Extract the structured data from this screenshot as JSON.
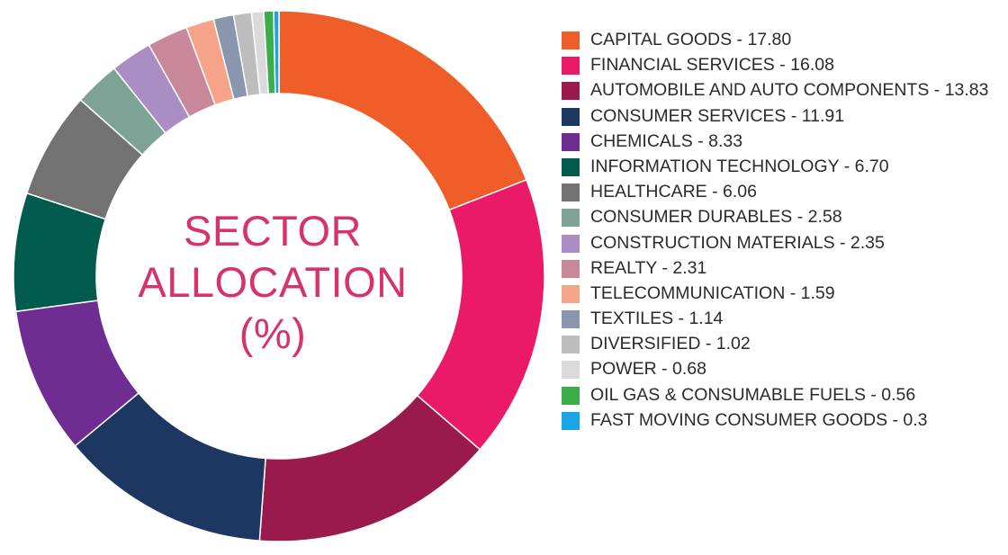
{
  "chart_data": {
    "type": "pie",
    "center_title": [
      "SECTOR",
      "ALLOCATION",
      "(%)"
    ],
    "legend_placement": "right",
    "series": [
      {
        "label": "CAPITAL GOODS - 17.80",
        "value": 17.8,
        "color": "#ef5e29"
      },
      {
        "label": "FINANCIAL SERVICES - 16.08",
        "value": 16.08,
        "color": "#eb1a68"
      },
      {
        "label": "AUTOMOBILE AND AUTO COMPONENTS - 13.83",
        "value": 13.83,
        "color": "#9b1a4e"
      },
      {
        "label": "CONSUMER SERVICES - 11.91",
        "value": 11.91,
        "color": "#1c3761"
      },
      {
        "label": "CHEMICALS - 8.33",
        "value": 8.33,
        "color": "#6f2c91"
      },
      {
        "label": "INFORMATION TECHNOLOGY - 6.70",
        "value": 6.7,
        "color": "#015b4e"
      },
      {
        "label": "HEALTHCARE - 6.06",
        "value": 6.06,
        "color": "#727272"
      },
      {
        "label": "CONSUMER DURABLES - 2.58",
        "value": 2.58,
        "color": "#7da296"
      },
      {
        "label": "CONSTRUCTION MATERIALS - 2.35",
        "value": 2.35,
        "color": "#aa8dc3"
      },
      {
        "label": "REALTY - 2.31",
        "value": 2.31,
        "color": "#c98899"
      },
      {
        "label": "TELECOMMUNICATION - 1.59",
        "value": 1.59,
        "color": "#f5a487"
      },
      {
        "label": "TEXTILES - 1.14",
        "value": 1.14,
        "color": "#8a96ad"
      },
      {
        "label": "DIVERSIFIED - 1.02",
        "value": 1.02,
        "color": "#bdbdbd"
      },
      {
        "label": "POWER - 0.68",
        "value": 0.68,
        "color": "#dadada"
      },
      {
        "label": "OIL GAS & CONSUMABLE FUELS  - 0.56",
        "value": 0.56,
        "color": "#3bae49"
      },
      {
        "label": "FAST MOVING CONSUMER GOODS  - 0.3",
        "value": 0.3,
        "color": "#1aa6e4"
      }
    ]
  }
}
